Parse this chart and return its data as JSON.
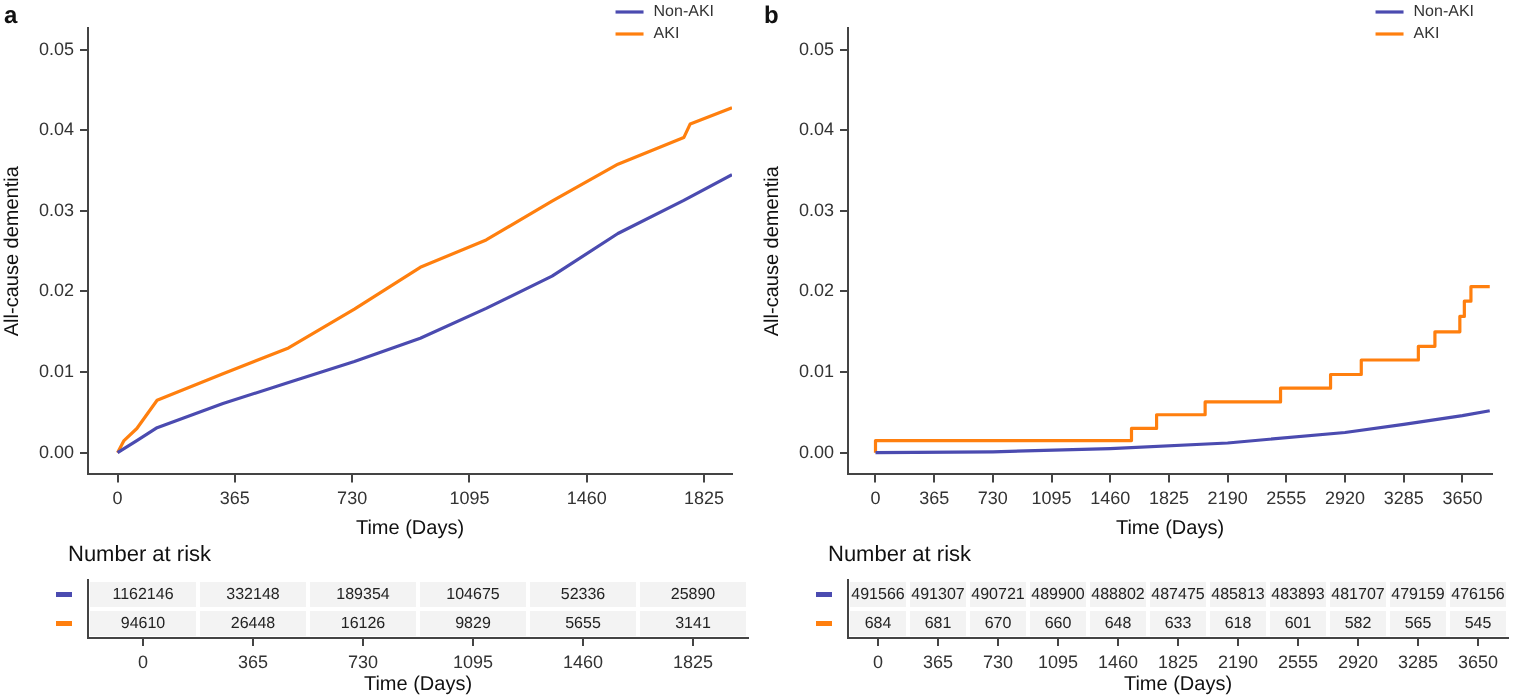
{
  "chart_data": [
    {
      "type": "line",
      "title": "a",
      "xlabel": "Time (Days)",
      "ylabel": "All-cause dementia",
      "xlim": [
        -92,
        1912
      ],
      "xticks": [
        0,
        365,
        730,
        1095,
        1460,
        1825
      ],
      "ylim": [
        -0.0027,
        0.0527
      ],
      "yticks": [
        {
          "value": 0,
          "label": "0.00"
        },
        0.01,
        0.02,
        0.03,
        0.04,
        0.05
      ],
      "legend": "top right",
      "grid": false,
      "marker": "none",
      "series": [
        {
          "name": "Non-AKI",
          "color": "#4b4bb0",
          "x": [
            0,
            60,
            123,
            328,
            532,
            737,
            942,
            1147,
            1352,
            1557,
            1762,
            1912
          ],
          "values": [
            0,
            0.0015,
            0.0031,
            0.0061,
            0.0087,
            0.0113,
            0.0142,
            0.0179,
            0.0219,
            0.0272,
            0.0313,
            0.0345
          ]
        },
        {
          "name": "AKI",
          "color": "#ff7f0e",
          "x": [
            0,
            20,
            60,
            123,
            328,
            532,
            737,
            942,
            1147,
            1352,
            1557,
            1762,
            1782,
            1912
          ],
          "values": [
            0,
            0.0015,
            0.003,
            0.0065,
            0.0098,
            0.013,
            0.0178,
            0.023,
            0.0264,
            0.0312,
            0.0358,
            0.0391,
            0.0408,
            0.0428
          ]
        }
      ]
    },
    {
      "type": "heatmap",
      "title": "Number at risk",
      "xlabel": "Time (Days)",
      "categories": [
        "0",
        "365",
        "730",
        "1095",
        "1460",
        "1825"
      ],
      "y_categories": [
        null,
        null
      ],
      "data_labels": true,
      "cells": [
        [
          1162146,
          332148,
          189354,
          104675,
          52336,
          25890
        ],
        [
          94610,
          26448,
          16126,
          9829,
          5655,
          3141
        ]
      ]
    },
    {
      "type": "line",
      "title": "b",
      "xlabel": "Time (Days)",
      "ylabel": "All-cause dementia",
      "xlim": [
        -171,
        3834
      ],
      "xticks": [
        0,
        365,
        730,
        1095,
        1460,
        1825,
        2190,
        2555,
        2920,
        3285,
        3650
      ],
      "ylim": [
        -0.0027,
        0.0527
      ],
      "yticks": [
        {
          "value": 0,
          "label": "0.00"
        },
        0.01,
        0.02,
        0.03,
        0.04,
        0.05
      ],
      "legend": "top right",
      "grid": false,
      "marker": "none",
      "series": [
        {
          "name": "Non-AKI",
          "color": "#4b4bb0",
          "x": [
            0,
            730,
            1460,
            2190,
            2920,
            3285,
            3650,
            3820
          ],
          "values": [
            0,
            0.0001,
            0.0005,
            0.0012,
            0.0025,
            0.0035,
            0.0046,
            0.0052
          ]
        },
        {
          "name": "AKI",
          "type": "step",
          "color": "#ff7f0e",
          "x": [
            0,
            1592,
            1748,
            2050,
            2519,
            2830,
            3021,
            3376,
            3479,
            3634,
            3662,
            3703,
            3810,
            3820
          ],
          "values": [
            0,
            0.0015,
            0.003,
            0.0047,
            0.0063,
            0.008,
            0.0097,
            0.0115,
            0.0132,
            0.015,
            0.0169,
            0.0188,
            0.0206,
            0.0206
          ]
        }
      ]
    },
    {
      "type": "heatmap",
      "title": "Number at risk",
      "xlabel": "Time (Days)",
      "categories": [
        "0",
        "365",
        "730",
        "1095",
        "1460",
        "1825",
        "2190",
        "2555",
        "2920",
        "3285",
        "3650"
      ],
      "y_categories": [
        null,
        null
      ],
      "data_labels": true,
      "cells": [
        [
          491566,
          491307,
          490721,
          489900,
          488802,
          487475,
          485813,
          483893,
          481707,
          479159,
          476156
        ],
        [
          684,
          681,
          670,
          660,
          648,
          633,
          618,
          601,
          582,
          565,
          545
        ]
      ]
    }
  ]
}
